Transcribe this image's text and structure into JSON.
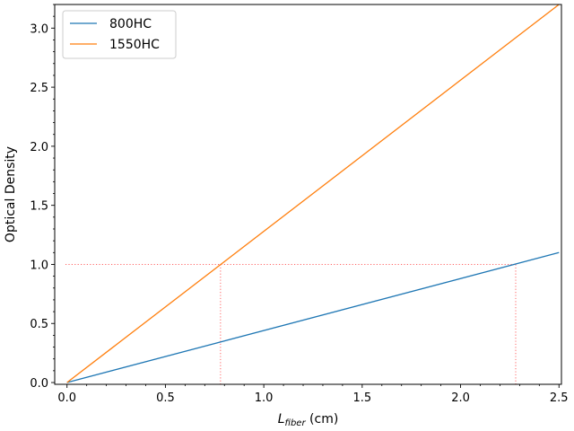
{
  "chart_data": {
    "type": "line",
    "xlabel_main": "L",
    "xlabel_sub": "fiber",
    "xlabel_unit": " (cm)",
    "ylabel": "Optical Density",
    "xlim": [
      -0.0625,
      2.5125
    ],
    "ylim": [
      -0.015,
      3.2
    ],
    "x_ticks": [
      0.0,
      0.5,
      1.0,
      1.5,
      2.0,
      2.5
    ],
    "x_tick_labels": [
      "0.0",
      "0.5",
      "1.0",
      "1.5",
      "2.0",
      "2.5"
    ],
    "y_ticks": [
      0.0,
      0.5,
      1.0,
      1.5,
      2.0,
      2.5,
      3.0
    ],
    "y_tick_labels": [
      "0.0",
      "0.5",
      "1.0",
      "1.5",
      "2.0",
      "2.5",
      "3.0"
    ],
    "x_minor_step": 0.1,
    "y_minor_step": 0.1,
    "grid": false,
    "legend_position": "top-left",
    "series": [
      {
        "name": "800HC",
        "color": "#1f77b4",
        "x": [
          0.0,
          2.5
        ],
        "y": [
          0.0,
          1.1
        ]
      },
      {
        "name": "1550HC",
        "color": "#ff7f0e",
        "x": [
          0.0,
          2.5
        ],
        "y": [
          0.0,
          3.2
        ]
      }
    ],
    "reference_lines": {
      "color": "#ff6666",
      "y_level": 1.0,
      "x_intercepts": [
        0.78,
        2.28
      ]
    }
  }
}
